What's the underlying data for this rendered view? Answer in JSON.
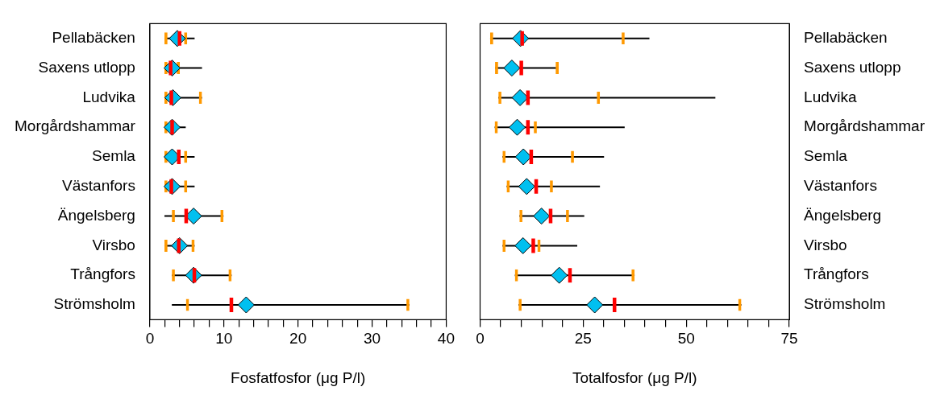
{
  "chart_data": [
    {
      "type": "box",
      "orientation": "horizontal",
      "xlabel": "Fosfatfosfor (μg P/l)",
      "categories": [
        "Pellabäcken",
        "Saxens utlopp",
        "Ludvika",
        "Morgårdshammar",
        "Semla",
        "Västanfors",
        "Ängelsberg",
        "Virsbo",
        "Trångfors",
        "Strömsholm"
      ],
      "boxes": [
        {
          "low": 2,
          "q1": 2,
          "median": 4,
          "q3": 5,
          "high": 6,
          "mean": 3.7
        },
        {
          "low": 2,
          "q1": 2,
          "median": 2.8,
          "q3": 4,
          "high": 7,
          "mean": 3
        },
        {
          "low": 2,
          "q1": 2,
          "median": 2.9,
          "q3": 7,
          "high": 7,
          "mean": 3.1
        },
        {
          "low": 2,
          "q1": 2,
          "median": 3,
          "q3": 3,
          "high": 4.8,
          "mean": 3
        },
        {
          "low": 2,
          "q1": 2,
          "median": 3.9,
          "q3": 5,
          "high": 6,
          "mean": 3
        },
        {
          "low": 2,
          "q1": 2,
          "median": 2.9,
          "q3": 5,
          "high": 6,
          "mean": 3
        },
        {
          "low": 2,
          "q1": 3,
          "median": 4.9,
          "q3": 9.9,
          "high": 9.9,
          "mean": 5.9
        },
        {
          "low": 2,
          "q1": 2,
          "median": 3.9,
          "q3": 6,
          "high": 6,
          "mean": 4
        },
        {
          "low": 3,
          "q1": 3,
          "median": 6,
          "q3": 11,
          "high": 11,
          "mean": 5.9
        },
        {
          "low": 3,
          "q1": 4.9,
          "median": 11,
          "q3": 35,
          "high": 35,
          "mean": 13
        }
      ],
      "xlim": [
        0,
        40
      ],
      "xticks": [
        0,
        {
          "value": 2,
          "label": null
        },
        {
          "value": 4,
          "label": null
        },
        {
          "value": 6,
          "label": null
        },
        {
          "value": 8,
          "label": null
        },
        10,
        {
          "value": 12,
          "label": null
        },
        {
          "value": 14,
          "label": null
        },
        {
          "value": 16,
          "label": null
        },
        {
          "value": 18,
          "label": null
        },
        20,
        {
          "value": 22,
          "label": null
        },
        {
          "value": 24,
          "label": null
        },
        {
          "value": 26,
          "label": null
        },
        {
          "value": 28,
          "label": null
        },
        30,
        {
          "value": 32,
          "label": null
        },
        {
          "value": 34,
          "label": null
        },
        {
          "value": 36,
          "label": null
        },
        {
          "value": 38,
          "label": null
        },
        40
      ]
    },
    {
      "type": "box",
      "orientation": "horizontal",
      "xlabel": "Totalfosfor (μg P/l)",
      "categories": [
        "Pellabäcken",
        "Saxens utlopp",
        "Ludvika",
        "Morgårdshammar",
        "Semla",
        "Västanfors",
        "Ängelsberg",
        "Virsbo",
        "Trångfors",
        "Strömsholm"
      ],
      "boxes": [
        {
          "low": 2.5,
          "q1": 2.5,
          "median": 10.2,
          "q3": 35,
          "high": 41,
          "mean": 9.8
        },
        {
          "low": 3.7,
          "q1": 3.7,
          "median": 10,
          "q3": 19,
          "high": 19,
          "mean": 7.7
        },
        {
          "low": 4.5,
          "q1": 4.5,
          "median": 11.6,
          "q3": 29,
          "high": 57,
          "mean": 9.7
        },
        {
          "low": 3.6,
          "q1": 3.6,
          "median": 11.6,
          "q3": 13.7,
          "high": 35,
          "mean": 9
        },
        {
          "low": 5.5,
          "q1": 5.5,
          "median": 12.4,
          "q3": 22.7,
          "high": 30,
          "mean": 10.5
        },
        {
          "low": 6.5,
          "q1": 6.5,
          "median": 13.6,
          "q3": 17.6,
          "high": 29,
          "mean": 11.3
        },
        {
          "low": 9.6,
          "q1": 9.6,
          "median": 17.1,
          "q3": 21.5,
          "high": 25.2,
          "mean": 14.9
        },
        {
          "low": 5.5,
          "q1": 5.5,
          "median": 12.9,
          "q3": 14.6,
          "high": 23.5,
          "mean": 10.4
        },
        {
          "low": 8.5,
          "q1": 8.5,
          "median": 21.8,
          "q3": 37.4,
          "high": 37.4,
          "mean": 19.2
        },
        {
          "low": 9.4,
          "q1": 9.4,
          "median": 32.6,
          "q3": 63.3,
          "high": 63.3,
          "mean": 27.8
        }
      ],
      "xlim": [
        0,
        75
      ],
      "xticks": [
        0,
        {
          "value": 5,
          "label": null
        },
        {
          "value": 10,
          "label": null
        },
        {
          "value": 15,
          "label": null
        },
        {
          "value": 20,
          "label": null
        },
        25,
        {
          "value": 30,
          "label": null
        },
        {
          "value": 35,
          "label": null
        },
        {
          "value": 40,
          "label": null
        },
        {
          "value": 45,
          "label": null
        },
        50,
        {
          "value": 55,
          "label": null
        },
        {
          "value": 60,
          "label": null
        },
        {
          "value": 65,
          "label": null
        },
        {
          "value": 70,
          "label": null
        },
        75
      ]
    }
  ]
}
